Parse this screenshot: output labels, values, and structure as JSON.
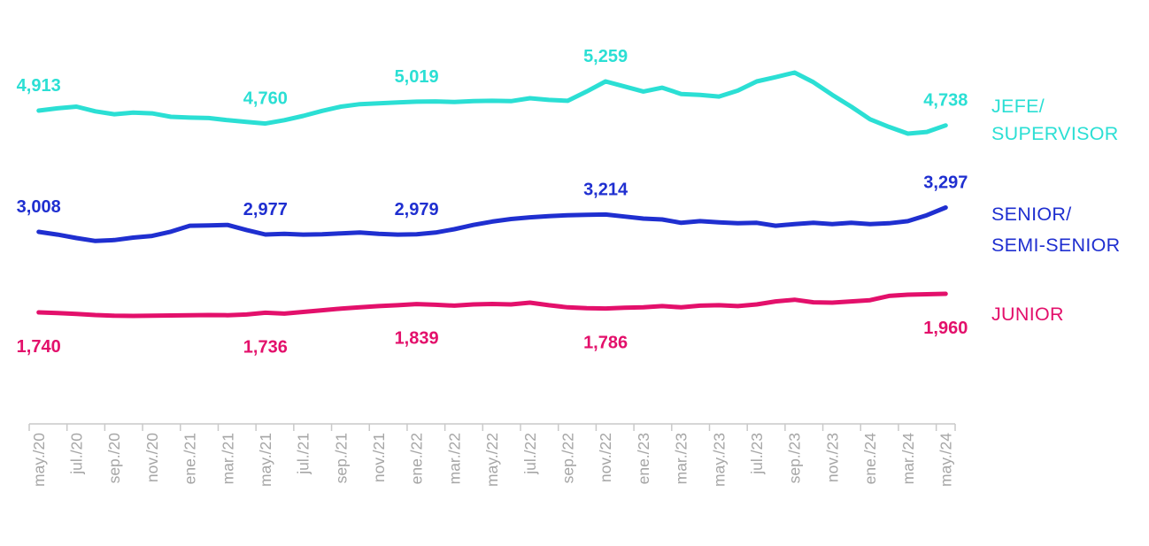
{
  "chart_data": {
    "type": "line",
    "title": "",
    "xlabel": "",
    "ylabel": "",
    "grid": false,
    "legend_position": "right",
    "background": "#FFFFFF",
    "x_tick_labels": [
      "may./20",
      "jul./20",
      "sep./20",
      "nov./20",
      "ene./21",
      "mar./21",
      "may./21",
      "jul./21",
      "sep./21",
      "nov./21",
      "ene./22",
      "mar./22",
      "may./22",
      "jul./22",
      "sep./22",
      "nov./22",
      "ene./23",
      "mar./23",
      "may./23",
      "jul./23",
      "sep./23",
      "nov./23",
      "ene./24",
      "mar./24",
      "may./24"
    ],
    "x_range": "may./20 - may./24 (monthly, 49 points)",
    "axis": {
      "line_color": "#C9C9C9",
      "tick_color": "#C9C9C9",
      "label_color": "#A6A6A6"
    },
    "series": [
      {
        "name": "JEFE/SUPERVISOR",
        "legend_lines": [
          "JEFE/",
          "SUPERVISOR"
        ],
        "color": "#2BDFD4",
        "values": [
          4913,
          4940,
          4960,
          4905,
          4870,
          4890,
          4880,
          4840,
          4830,
          4825,
          4800,
          4780,
          4760,
          4800,
          4850,
          4910,
          4960,
          4990,
          5000,
          5010,
          5019,
          5022,
          5015,
          5025,
          5030,
          5025,
          5060,
          5040,
          5030,
          5140,
          5259,
          5200,
          5140,
          5185,
          5110,
          5100,
          5080,
          5150,
          5260,
          5310,
          5365,
          5250,
          5100,
          4960,
          4810,
          4720,
          4640,
          4660,
          4738
        ],
        "point_labels": [
          {
            "index": 0,
            "text": "4,913"
          },
          {
            "index": 12,
            "text": "4,760"
          },
          {
            "index": 20,
            "text": "5,019"
          },
          {
            "index": 30,
            "text": "5,259"
          },
          {
            "index": 48,
            "text": "4,738"
          }
        ],
        "label_position": "above"
      },
      {
        "name": "SENIOR/SEMI-SENIOR",
        "legend_lines": [
          "SENIOR/",
          "SEMI-SENIOR"
        ],
        "color": "#1F2FD0",
        "values": [
          3008,
          2975,
          2935,
          2900,
          2910,
          2940,
          2960,
          3010,
          3080,
          3085,
          3090,
          3030,
          2977,
          2985,
          2975,
          2980,
          2990,
          3000,
          2985,
          2975,
          2979,
          3000,
          3040,
          3090,
          3130,
          3160,
          3180,
          3195,
          3205,
          3210,
          3214,
          3190,
          3165,
          3155,
          3115,
          3135,
          3120,
          3110,
          3115,
          3080,
          3100,
          3115,
          3100,
          3115,
          3100,
          3110,
          3135,
          3205,
          3297
        ],
        "point_labels": [
          {
            "index": 0,
            "text": "3,008"
          },
          {
            "index": 12,
            "text": "2,977"
          },
          {
            "index": 20,
            "text": "2,979"
          },
          {
            "index": 30,
            "text": "3,214"
          },
          {
            "index": 48,
            "text": "3,297"
          }
        ],
        "label_position": "above"
      },
      {
        "name": "JUNIOR",
        "legend_lines": [
          "JUNIOR"
        ],
        "color": "#E3106B",
        "values": [
          1740,
          1732,
          1722,
          1708,
          1700,
          1698,
          1700,
          1703,
          1705,
          1708,
          1706,
          1715,
          1736,
          1725,
          1745,
          1765,
          1785,
          1800,
          1815,
          1825,
          1839,
          1830,
          1820,
          1835,
          1840,
          1835,
          1855,
          1825,
          1800,
          1790,
          1786,
          1795,
          1800,
          1815,
          1800,
          1820,
          1825,
          1815,
          1835,
          1870,
          1890,
          1860,
          1855,
          1870,
          1885,
          1935,
          1950,
          1955,
          1960
        ],
        "point_labels": [
          {
            "index": 0,
            "text": "1,740"
          },
          {
            "index": 12,
            "text": "1,736"
          },
          {
            "index": 20,
            "text": "1,839"
          },
          {
            "index": 30,
            "text": "1,786"
          },
          {
            "index": 48,
            "text": "1,960"
          }
        ],
        "label_position": "below"
      }
    ]
  }
}
